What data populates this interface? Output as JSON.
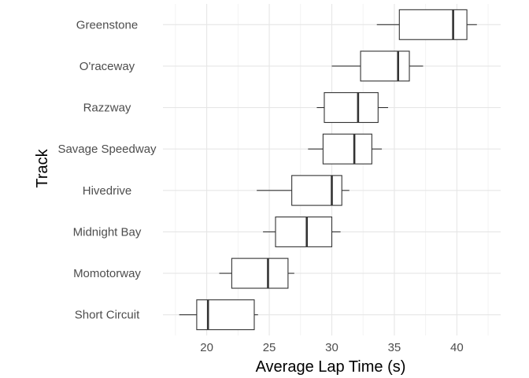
{
  "chart_data": {
    "type": "boxplot",
    "orientation": "horizontal",
    "xlabel": "Average Lap Time (s)",
    "ylabel": "Track",
    "xlim": [
      16.5,
      43.5
    ],
    "x_ticks": [
      20,
      25,
      30,
      35,
      40
    ],
    "x_tick_labels": [
      "20",
      "25",
      "30",
      "35",
      "40"
    ],
    "grid": true,
    "categories": [
      "Short Circuit",
      "Momotorway",
      "Midnight Bay",
      "Hivedrive",
      "Savage Speedway",
      "Razzway",
      "O'raceway",
      "Greenstone"
    ],
    "boxes": [
      {
        "track": "Short Circuit",
        "min": 17.8,
        "q1": 19.2,
        "median": 20.1,
        "q3": 23.8,
        "max": 24.1
      },
      {
        "track": "Momotorway",
        "min": 21.0,
        "q1": 22.0,
        "median": 24.9,
        "q3": 26.5,
        "max": 27.0
      },
      {
        "track": "Midnight Bay",
        "min": 24.5,
        "q1": 25.5,
        "median": 28.0,
        "q3": 30.0,
        "max": 30.7
      },
      {
        "track": "Hivedrive",
        "min": 24.0,
        "q1": 26.8,
        "median": 30.0,
        "q3": 30.8,
        "max": 31.4
      },
      {
        "track": "Savage Speedway",
        "min": 28.1,
        "q1": 29.3,
        "median": 31.8,
        "q3": 33.2,
        "max": 34.0
      },
      {
        "track": "Razzway",
        "min": 28.8,
        "q1": 29.4,
        "median": 32.1,
        "q3": 33.7,
        "max": 34.5
      },
      {
        "track": "O'raceway",
        "min": 30.0,
        "q1": 32.3,
        "median": 35.3,
        "q3": 36.2,
        "max": 37.3
      },
      {
        "track": "Greenstone",
        "min": 33.6,
        "q1": 35.4,
        "median": 39.7,
        "q3": 40.8,
        "max": 41.6
      }
    ]
  }
}
